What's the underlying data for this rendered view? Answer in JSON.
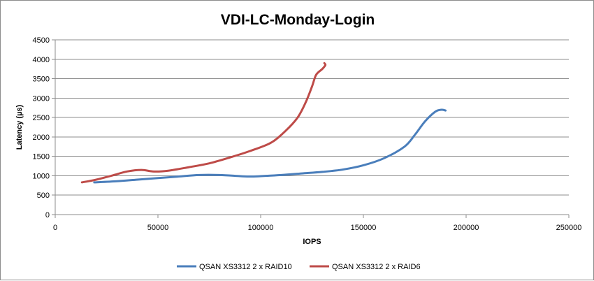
{
  "chart_data": {
    "type": "line",
    "title": "VDI-LC-Monday-Login",
    "xlabel": "IOPS",
    "ylabel": "Latency (µs)",
    "xlim": [
      0,
      250000
    ],
    "ylim": [
      0,
      4500
    ],
    "x_ticks": [
      0,
      50000,
      100000,
      150000,
      200000,
      250000
    ],
    "y_ticks": [
      0,
      500,
      1000,
      1500,
      2000,
      2500,
      3000,
      3500,
      4000,
      4500
    ],
    "grid": "horizontal",
    "legend": "bottom",
    "series": [
      {
        "name": "QSAN XS3312 2 x RAID10",
        "color": "#4a7ebb",
        "x": [
          19000,
          30000,
          40000,
          50000,
          60000,
          70000,
          80000,
          90000,
          95000,
          100000,
          110000,
          120000,
          130000,
          140000,
          150000,
          160000,
          170000,
          175000,
          180000,
          185000,
          188000,
          190000
        ],
        "y": [
          830,
          860,
          900,
          940,
          980,
          1020,
          1020,
          990,
          980,
          990,
          1020,
          1060,
          1100,
          1160,
          1270,
          1450,
          1750,
          2050,
          2400,
          2650,
          2700,
          2680
        ]
      },
      {
        "name": "QSAN XS3312 2 x RAID6",
        "color": "#be4b48",
        "x": [
          13000,
          20000,
          28000,
          35000,
          42000,
          48000,
          55000,
          65000,
          75000,
          85000,
          95000,
          105000,
          112000,
          118000,
          122000,
          125000,
          127000,
          130000,
          131500,
          131000
        ],
        "y": [
          830,
          900,
          1010,
          1110,
          1150,
          1110,
          1130,
          1220,
          1320,
          1470,
          1640,
          1850,
          2150,
          2500,
          2900,
          3300,
          3600,
          3750,
          3850,
          3900
        ]
      }
    ]
  }
}
